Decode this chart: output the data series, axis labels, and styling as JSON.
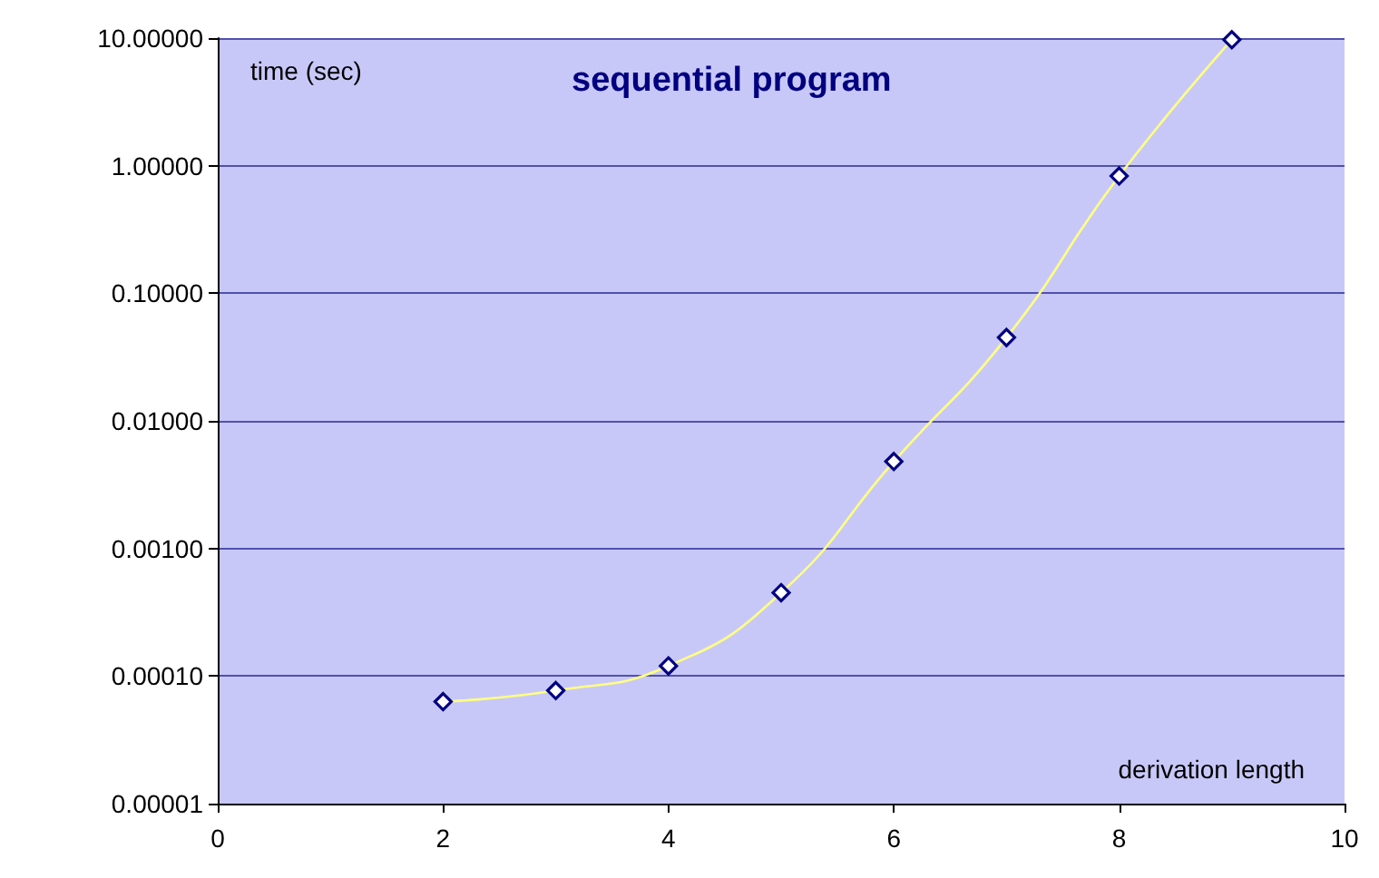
{
  "chart_data": {
    "type": "line",
    "title": "sequential program",
    "xlabel": "derivation length",
    "ylabel": "time (sec)",
    "x": [
      2,
      3,
      4,
      5,
      6,
      7,
      8,
      9
    ],
    "series": [
      {
        "color": "#ffff80",
        "values": [
          6.3e-05,
          7.7e-05,
          0.00012,
          0.00045,
          0.0048,
          0.045,
          0.83,
          9.7
        ]
      }
    ],
    "xlim": [
      0,
      10
    ],
    "xticks": [
      0,
      2,
      4,
      6,
      8,
      10
    ],
    "ylim": [
      1e-05,
      10
    ],
    "yticks": [
      {
        "value": 1e-05,
        "label": "0.00001"
      },
      {
        "value": 0.0001,
        "label": "0.00010"
      },
      {
        "value": 0.001,
        "label": "0.00100"
      },
      {
        "value": 0.01,
        "label": "0.01000"
      },
      {
        "value": 0.1,
        "label": "0.10000"
      },
      {
        "value": 1,
        "label": "1.00000"
      },
      {
        "value": 10,
        "label": "10.00000"
      }
    ],
    "log": "y",
    "grid": "y",
    "marker": "diamond"
  }
}
